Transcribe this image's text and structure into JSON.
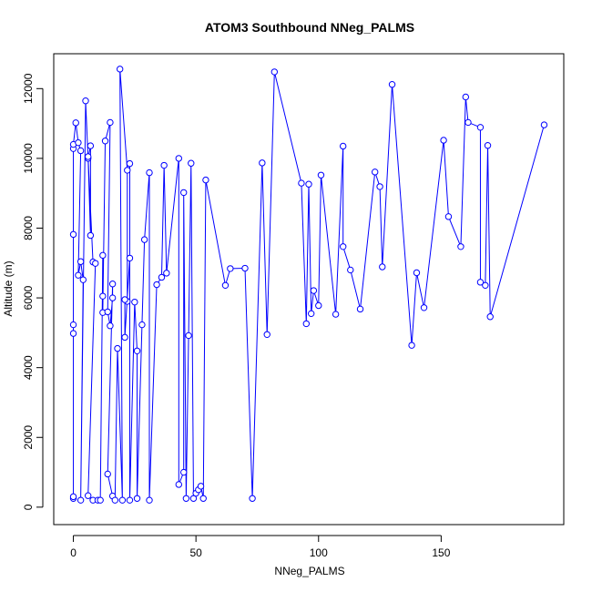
{
  "chart_data": {
    "type": "line",
    "title": "ATOM3 Southbound NNeg_PALMS",
    "xlabel": "NNeg_PALMS",
    "ylabel": "Altitude (m)",
    "xlim": [
      -8,
      200
    ],
    "ylim": [
      -500,
      13000
    ],
    "xticks": [
      0,
      50,
      100,
      150
    ],
    "yticks": [
      0,
      2000,
      4000,
      6000,
      8000,
      10000,
      12000
    ],
    "grid": false,
    "legend": "none",
    "series_color": "#0000ff",
    "series": [
      {
        "points": [
          [
            0,
            250
          ],
          [
            0,
            300
          ],
          [
            0,
            4980
          ],
          [
            0,
            5230
          ],
          [
            0,
            7820
          ],
          [
            0,
            10280
          ],
          [
            0,
            10400
          ],
          [
            1,
            11020
          ],
          [
            2,
            10450
          ],
          [
            3,
            10220
          ],
          [
            2,
            6650
          ],
          [
            3,
            7040
          ],
          [
            4,
            6520
          ],
          [
            3,
            200
          ],
          [
            5,
            11650
          ],
          [
            6,
            10000
          ],
          [
            7,
            10360
          ],
          [
            7,
            7790
          ],
          [
            6,
            10050
          ],
          [
            8,
            7030
          ],
          [
            9,
            6990
          ],
          [
            6,
            330
          ],
          [
            8,
            200
          ],
          [
            10,
            200
          ],
          [
            11,
            200
          ],
          [
            12,
            7220
          ],
          [
            12,
            6050
          ],
          [
            12,
            5580
          ],
          [
            13,
            10500
          ],
          [
            15,
            11030
          ],
          [
            14,
            5600
          ],
          [
            15,
            5200
          ],
          [
            16,
            6000
          ],
          [
            16,
            6400
          ],
          [
            14,
            950
          ],
          [
            16,
            320
          ],
          [
            17,
            200
          ],
          [
            18,
            4550
          ],
          [
            20,
            200
          ],
          [
            19,
            12560
          ],
          [
            22,
            9660
          ],
          [
            22,
            5900
          ],
          [
            21,
            5950
          ],
          [
            21,
            4870
          ],
          [
            23,
            7140
          ],
          [
            23,
            9850
          ],
          [
            23,
            200
          ],
          [
            25,
            5880
          ],
          [
            26,
            4480
          ],
          [
            26,
            250
          ],
          [
            28,
            5230
          ],
          [
            29,
            7670
          ],
          [
            31,
            9590
          ],
          [
            31,
            200
          ],
          [
            34,
            6380
          ],
          [
            36,
            6590
          ],
          [
            37,
            9800
          ],
          [
            38,
            6710
          ],
          [
            43,
            10000
          ],
          [
            43,
            650
          ],
          [
            45,
            1000
          ],
          [
            45,
            9020
          ],
          [
            46,
            250
          ],
          [
            47,
            4920
          ],
          [
            48,
            9860
          ],
          [
            49,
            250
          ],
          [
            50,
            400
          ],
          [
            51,
            500
          ],
          [
            52,
            600
          ],
          [
            53,
            250
          ],
          [
            54,
            9380
          ],
          [
            62,
            6360
          ],
          [
            64,
            6840
          ],
          [
            70,
            6850
          ],
          [
            73,
            250
          ],
          [
            77,
            9870
          ],
          [
            79,
            4950
          ],
          [
            82,
            12480
          ],
          [
            93,
            9290
          ],
          [
            95,
            5260
          ],
          [
            96,
            9260
          ],
          [
            97,
            5550
          ],
          [
            98,
            6210
          ],
          [
            100,
            5780
          ],
          [
            101,
            9520
          ],
          [
            107,
            5530
          ],
          [
            110,
            10350
          ],
          [
            110,
            7470
          ],
          [
            113,
            6800
          ],
          [
            117,
            5680
          ],
          [
            123,
            9610
          ],
          [
            125,
            9190
          ],
          [
            126,
            6890
          ],
          [
            130,
            12120
          ],
          [
            138,
            4640
          ],
          [
            140,
            6720
          ],
          [
            143,
            5720
          ],
          [
            151,
            10520
          ],
          [
            153,
            8330
          ],
          [
            158,
            7470
          ],
          [
            160,
            11760
          ],
          [
            161,
            11030
          ],
          [
            166,
            10890
          ],
          [
            166,
            6450
          ],
          [
            168,
            6360
          ],
          [
            169,
            10370
          ],
          [
            170,
            5460
          ],
          [
            192,
            10960
          ]
        ]
      }
    ]
  }
}
